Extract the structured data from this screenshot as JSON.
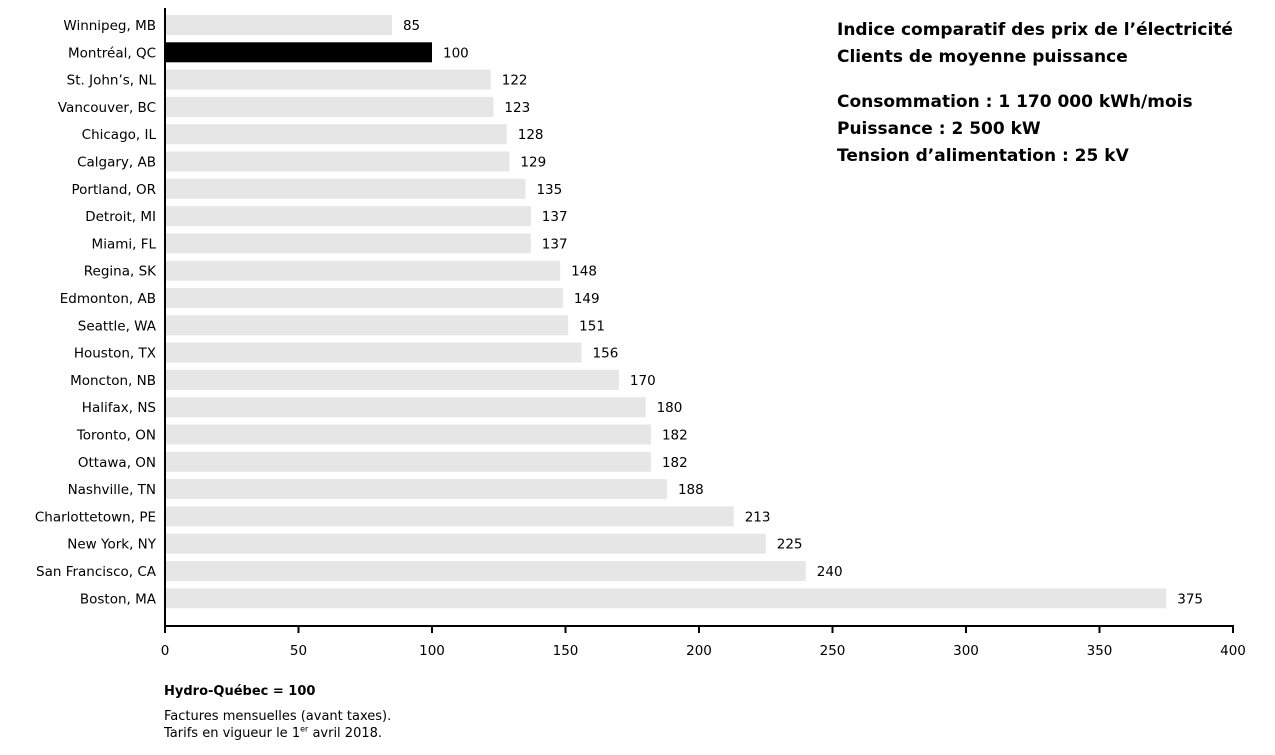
{
  "chart_data": {
    "type": "bar",
    "orientation": "horizontal",
    "categories": [
      "Winnipeg, MB",
      "Montréal, QC",
      "St. John’s, NL",
      "Vancouver, BC",
      "Chicago, IL",
      "Calgary, AB",
      "Portland, OR",
      "Detroit, MI",
      "Miami, FL",
      "Regina, SK",
      "Edmonton, AB",
      "Seattle, WA",
      "Houston, TX",
      "Moncton, NB",
      "Halifax, NS",
      "Toronto, ON",
      "Ottawa, ON",
      "Nashville, TN",
      "Charlottetown, PE",
      "New York, NY",
      "San Francisco, CA",
      "Boston, MA"
    ],
    "values": [
      85,
      100,
      122,
      123,
      128,
      129,
      135,
      137,
      137,
      148,
      149,
      151,
      156,
      170,
      180,
      182,
      182,
      188,
      213,
      225,
      240,
      375
    ],
    "highlight": "Montréal, QC",
    "xlim": [
      0,
      400
    ],
    "xticks": [
      0,
      50,
      100,
      150,
      200,
      250,
      300,
      350,
      400
    ],
    "grid": false,
    "colors": {
      "bar": "#e6e6e6",
      "highlight": "#000000",
      "axis": "#000000"
    },
    "title": "Indice comparatif des prix de l’électricité",
    "subtitle": "Clients de moyenne puissance",
    "details": [
      "Consommation : 1 170 000 kWh/mois",
      "Puissance : 2 500 kW",
      "Tension d’alimentation : 25 kV"
    ]
  },
  "footer": {
    "base_note": "Hydro-Québec = 100",
    "line1": "Factures mensuelles (avant taxes).",
    "line2_before": "Tarifs en vigueur le 1",
    "line2_sup": "er",
    "line2_after": " avril 2018."
  }
}
